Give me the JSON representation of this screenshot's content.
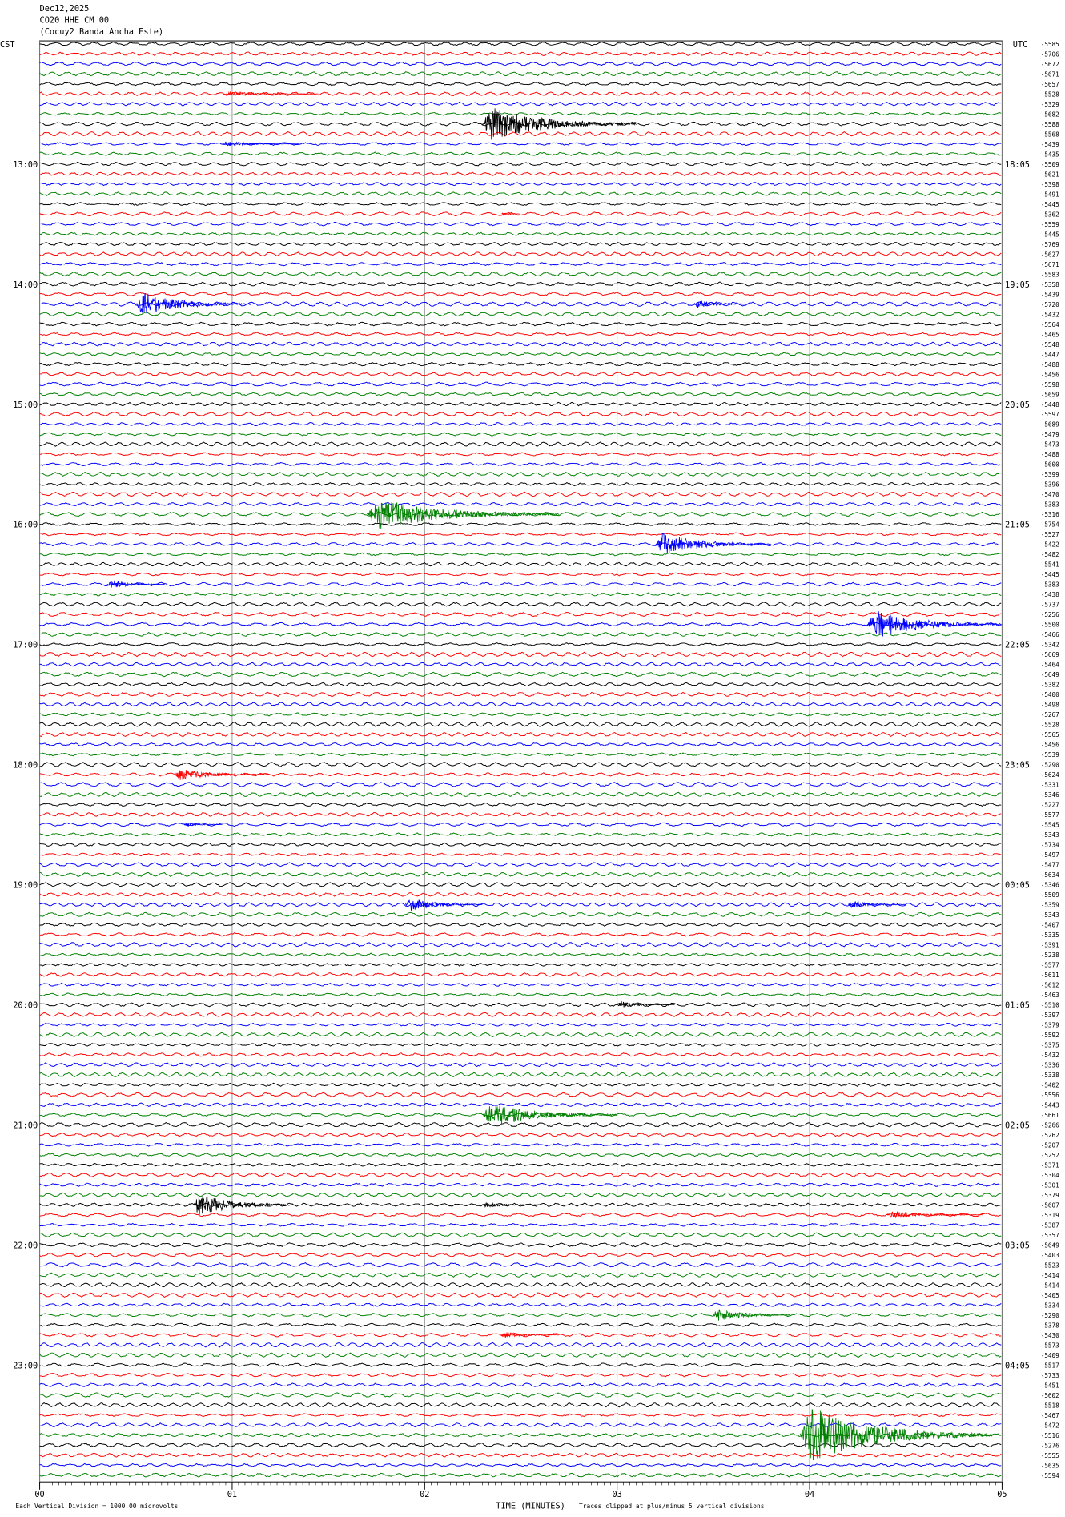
{
  "chart_data": {
    "type": "helicorder",
    "title": "Dec12,2025",
    "subtitle": "CO20 HHE CM 00",
    "station": "(Cocuy2 Banda Ancha Este)",
    "left_axis_label": "CST",
    "right_axis_label": "UTC",
    "xlabel": "TIME (MINUTES)",
    "scale_note": "Each Vertical Division = 1000.00 microvolts",
    "clip_note": "Traces clipped at plus/minus 5 vertical divisions",
    "xlim": [
      0,
      5
    ],
    "xticks": [
      {
        "value": 0,
        "label": "00"
      },
      {
        "value": 1,
        "label": "01"
      },
      {
        "value": 2,
        "label": "02"
      },
      {
        "value": 3,
        "label": "03"
      },
      {
        "value": 4,
        "label": "04"
      },
      {
        "value": 5,
        "label": "05"
      }
    ],
    "grid": true,
    "trace_colors": [
      "#000000",
      "#ff0000",
      "#0000ff",
      "#008000"
    ],
    "time_labels": [
      {
        "trace": 12,
        "cst": "13:00",
        "utc": "18:05"
      },
      {
        "trace": 24,
        "cst": "14:00",
        "utc": "19:05"
      },
      {
        "trace": 36,
        "cst": "15:00",
        "utc": "20:05"
      },
      {
        "trace": 48,
        "cst": "16:00",
        "utc": "21:05"
      },
      {
        "trace": 60,
        "cst": "17:00",
        "utc": "22:05"
      },
      {
        "trace": 72,
        "cst": "18:00",
        "utc": "23:05"
      },
      {
        "trace": 84,
        "cst": "19:00",
        "utc": "00:05"
      },
      {
        "trace": 96,
        "cst": "20:00",
        "utc": "01:05"
      },
      {
        "trace": 108,
        "cst": "21:00",
        "utc": "02:05"
      },
      {
        "trace": 120,
        "cst": "22:00",
        "utc": "03:05"
      },
      {
        "trace": 132,
        "cst": "23:00",
        "utc": "04:05"
      }
    ],
    "trace_offsets": [
      -5585,
      -5706,
      -5672,
      -5671,
      -5657,
      -5528,
      -5329,
      -5682,
      -5588,
      -5568,
      -5439,
      -5435,
      -5509,
      -5621,
      -5398,
      -5491,
      -5445,
      -5362,
      -5559,
      -5445,
      -5769,
      -5627,
      -5671,
      -5583,
      -5358,
      -5439,
      -5720,
      -5432,
      -5564,
      -5465,
      -5548,
      -5447,
      -5488,
      -5456,
      -5598,
      -5659,
      -5448,
      -5597,
      -5689,
      -5479,
      -5473,
      -5488,
      -5600,
      -5399,
      -5396,
      -5470,
      -5383,
      -5316,
      -5754,
      -5527,
      -5422,
      -5482,
      -5541,
      -5445,
      -5383,
      -5438,
      -5737,
      -5256,
      -5500,
      -5466,
      -5342,
      -5669,
      -5464,
      -5649,
      -5382,
      -5400,
      -5498,
      -5267,
      -5528,
      -5565,
      -5456,
      -5539,
      -5290,
      -5624,
      -5331,
      -5346,
      -5227,
      -5577,
      -5545,
      -5343,
      -5734,
      -5497,
      -5477,
      -5634,
      -5346,
      -5509,
      -5359,
      -5343,
      -5407,
      -5335,
      -5391,
      -5238,
      -5577,
      -5611,
      -5612,
      -5463,
      -5510,
      -5397,
      -5379,
      -5592,
      -5375,
      -5432,
      -5336,
      -5338,
      -5402,
      -5556,
      -5443,
      -5661,
      -5266,
      -5262,
      -5207,
      -5252,
      -5371,
      -5304,
      -5301,
      -5379,
      -5607,
      -5319,
      -5387,
      -5357,
      -5649,
      -5403,
      -5523,
      -5414,
      -5414,
      -5405,
      -5334,
      -5290,
      -5378,
      -5430,
      -5573,
      -5409,
      -5517,
      -5733,
      -5451,
      -5602,
      -5518,
      -5467,
      -5472,
      -5516,
      -5276,
      -5555,
      -5635,
      -5594
    ],
    "events": [
      {
        "trace": 8,
        "start": 2.3,
        "duration": 0.8,
        "amplitude": 22
      },
      {
        "trace": 5,
        "start": 0.95,
        "duration": 0.5,
        "amplitude": 3
      },
      {
        "trace": 10,
        "start": 0.95,
        "duration": 0.4,
        "amplitude": 3
      },
      {
        "trace": 17,
        "start": 2.4,
        "duration": 0.1,
        "amplitude": 2
      },
      {
        "trace": 26,
        "start": 0.5,
        "duration": 0.6,
        "amplitude": 15
      },
      {
        "trace": 26,
        "start": 3.4,
        "duration": 0.3,
        "amplitude": 5
      },
      {
        "trace": 47,
        "start": 1.7,
        "duration": 1.0,
        "amplitude": 20
      },
      {
        "trace": 50,
        "start": 3.2,
        "duration": 0.6,
        "amplitude": 14
      },
      {
        "trace": 54,
        "start": 0.35,
        "duration": 0.3,
        "amplitude": 5
      },
      {
        "trace": 58,
        "start": 4.3,
        "duration": 0.7,
        "amplitude": 18
      },
      {
        "trace": 73,
        "start": 0.7,
        "duration": 0.5,
        "amplitude": 7
      },
      {
        "trace": 78,
        "start": 0.75,
        "duration": 0.2,
        "amplitude": 3
      },
      {
        "trace": 86,
        "start": 1.9,
        "duration": 0.4,
        "amplitude": 8
      },
      {
        "trace": 86,
        "start": 4.2,
        "duration": 0.3,
        "amplitude": 5
      },
      {
        "trace": 96,
        "start": 3.0,
        "duration": 0.3,
        "amplitude": 4
      },
      {
        "trace": 107,
        "start": 2.3,
        "duration": 0.7,
        "amplitude": 15
      },
      {
        "trace": 116,
        "start": 0.8,
        "duration": 0.5,
        "amplitude": 15
      },
      {
        "trace": 116,
        "start": 2.3,
        "duration": 0.3,
        "amplitude": 3
      },
      {
        "trace": 117,
        "start": 4.4,
        "duration": 0.5,
        "amplitude": 4
      },
      {
        "trace": 127,
        "start": 3.5,
        "duration": 0.4,
        "amplitude": 8
      },
      {
        "trace": 129,
        "start": 2.4,
        "duration": 0.3,
        "amplitude": 4
      },
      {
        "trace": 139,
        "start": 3.95,
        "duration": 1.0,
        "amplitude": 35
      }
    ]
  }
}
